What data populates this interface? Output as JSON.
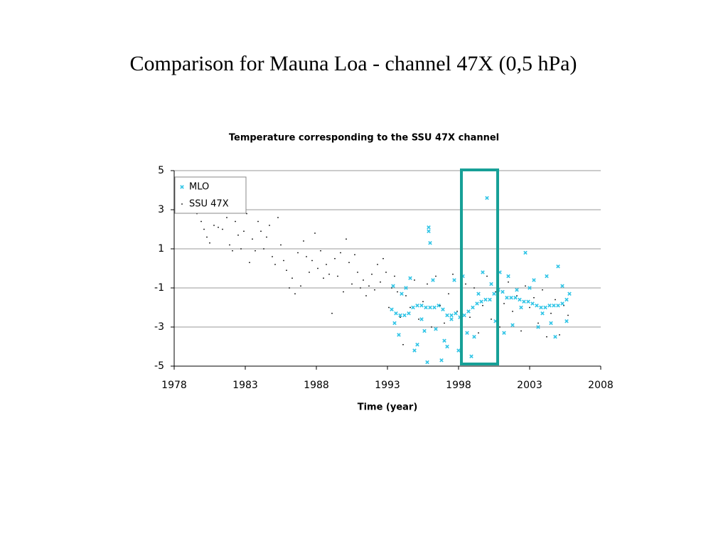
{
  "slide_title": "Comparison for Mauna Loa - channel 47X (0,5 hPa)",
  "chart_data": {
    "type": "scatter",
    "title": "Temperature corresponding to the SSU 47X channel",
    "x_label": "Time (year)",
    "xlim": [
      1978,
      2008
    ],
    "xticks": [
      1978,
      1983,
      1988,
      1993,
      1998,
      2003,
      2008
    ],
    "ylim": [
      -5,
      5
    ],
    "yticks": [
      -5,
      -3,
      -1,
      1,
      3,
      5
    ],
    "grid": true,
    "legend": "upper-left",
    "series": [
      {
        "name": "MLO",
        "color": "#2ec4e6",
        "marker": "x",
        "x": [
          1993.3,
          1993.6,
          1993.9,
          1994.2,
          1994.5,
          1994.8,
          1995.1,
          1995.4,
          1995.7,
          1996.0,
          1996.3,
          1996.6,
          1996.9,
          1997.2,
          1997.5,
          1997.8,
          1998.1,
          1998.4,
          1998.7,
          1999.0,
          1999.3,
          1999.6,
          1999.9,
          2000.2,
          2000.5,
          2000.8,
          2001.1,
          2001.4,
          2001.7,
          2002.0,
          2002.3,
          2002.6,
          2002.9,
          2003.2,
          2003.5,
          2003.8,
          2004.1,
          2004.4,
          2004.7,
          2005.0,
          2005.3,
          2005.6,
          1993.4,
          1993.5,
          1993.8,
          1994.0,
          1994.3,
          1994.6,
          1994.9,
          1995.1,
          1995.4,
          1995.6,
          1995.9,
          1995.9,
          1996.0,
          1996.2,
          1996.4,
          1996.8,
          1997.0,
          1997.2,
          1997.5,
          1997.7,
          1998.0,
          1998.3,
          1998.6,
          1998.9,
          1999.1,
          1999.4,
          1999.7,
          2000.0,
          2000.3,
          2000.6,
          2000.9,
          2001.2,
          2001.5,
          2001.8,
          2002.1,
          2002.4,
          2002.7,
          2003.0,
          2003.3,
          2003.6,
          2003.9,
          2004.2,
          2004.5,
          2004.8,
          2005.0,
          2005.3,
          2005.6,
          2005.8,
          1995.8
        ],
        "values": [
          -2.1,
          -2.3,
          -2.4,
          -2.4,
          -2.3,
          -2.0,
          -1.9,
          -1.9,
          -2.0,
          -2.0,
          -2.0,
          -1.9,
          -2.1,
          -2.4,
          -2.4,
          -2.3,
          -2.5,
          -2.4,
          -2.2,
          -2.0,
          -1.8,
          -1.7,
          -1.6,
          -1.6,
          -1.3,
          -1.1,
          -1.2,
          -1.5,
          -1.5,
          -1.5,
          -1.6,
          -1.7,
          -1.7,
          -1.8,
          -1.9,
          -2.0,
          -2.0,
          -1.9,
          -1.9,
          -1.9,
          -1.8,
          -1.6,
          -0.9,
          -2.8,
          -3.4,
          -1.3,
          -1.0,
          -0.5,
          -4.2,
          -3.9,
          -2.6,
          -3.2,
          2.1,
          1.9,
          1.3,
          -0.6,
          -3.1,
          -4.7,
          -3.7,
          -4.0,
          -2.6,
          -0.6,
          -4.2,
          -0.4,
          -3.3,
          -4.5,
          -3.5,
          -1.3,
          -0.2,
          3.6,
          -0.8,
          -2.7,
          -0.2,
          -3.3,
          -0.4,
          -2.9,
          -1.1,
          -2.0,
          0.8,
          -1.0,
          -0.6,
          -3.0,
          -2.3,
          -0.4,
          -2.8,
          -3.5,
          0.1,
          -0.9,
          -2.7,
          -1.3,
          -4.8
        ]
      },
      {
        "name": "SSU 47X",
        "color": "#000000",
        "marker": "dot",
        "x": [
          1979.6,
          1979.9,
          1980.1,
          1980.3,
          1980.5,
          1980.8,
          1981.1,
          1981.4,
          1981.7,
          1981.9,
          1982.1,
          1982.3,
          1982.5,
          1982.7,
          1982.9,
          1983.1,
          1983.3,
          1983.5,
          1983.7,
          1983.9,
          1984.1,
          1984.3,
          1984.5,
          1984.7,
          1984.9,
          1985.1,
          1985.3,
          1985.5,
          1985.7,
          1985.9,
          1986.1,
          1986.3,
          1986.5,
          1986.7,
          1986.9,
          1987.1,
          1987.3,
          1987.5,
          1987.7,
          1987.9,
          1988.1,
          1988.3,
          1988.5,
          1988.7,
          1988.9,
          1989.1,
          1989.3,
          1989.5,
          1989.7,
          1989.9,
          1990.1,
          1990.3,
          1990.5,
          1990.7,
          1990.9,
          1991.1,
          1991.3,
          1991.5,
          1991.7,
          1991.9,
          1992.1,
          1992.3,
          1992.5,
          1992.7,
          1992.9,
          1993.1,
          1993.3,
          1993.5,
          1993.7,
          1993.9,
          1994.1,
          1994.3,
          1994.6,
          1994.9,
          1995.2,
          1995.5,
          1995.8,
          1996.1,
          1996.4,
          1996.7,
          1997.0,
          1997.3,
          1997.6,
          1997.9,
          1998.2,
          1998.5,
          1998.8,
          1999.1,
          1999.4,
          1999.7,
          2000.0,
          2000.3,
          2000.6,
          2000.9,
          2001.2,
          2001.5,
          2001.8,
          2002.1,
          2002.4,
          2002.7,
          2003.0,
          2003.3,
          2003.6,
          2003.9,
          2004.2,
          2004.5,
          2004.8,
          2005.1,
          2005.4,
          2005.7
        ],
        "values": [
          2.8,
          2.4,
          2.0,
          1.6,
          1.3,
          2.2,
          2.1,
          2.0,
          2.6,
          1.2,
          0.9,
          2.4,
          1.7,
          1.0,
          1.9,
          2.8,
          0.3,
          1.5,
          0.9,
          2.4,
          1.9,
          1.0,
          1.6,
          2.2,
          0.6,
          0.2,
          2.6,
          1.2,
          0.4,
          -0.1,
          -1.0,
          -0.5,
          -1.3,
          0.8,
          -0.9,
          1.4,
          0.6,
          -0.2,
          0.4,
          1.8,
          0.0,
          0.9,
          -0.5,
          0.2,
          -0.3,
          -2.3,
          0.5,
          -0.4,
          0.8,
          -1.2,
          1.5,
          0.3,
          -0.8,
          0.7,
          -0.2,
          -1.0,
          -0.6,
          -1.4,
          -0.9,
          -0.3,
          -1.1,
          0.2,
          -0.7,
          0.5,
          -0.2,
          -2.0,
          -1.0,
          -0.4,
          -1.2,
          -2.5,
          -3.9,
          -1.4,
          -2.0,
          -0.6,
          -2.6,
          -1.7,
          -0.8,
          -3.0,
          -0.4,
          -1.9,
          -2.8,
          -1.3,
          -0.3,
          -2.2,
          -1.5,
          -0.8,
          -2.5,
          -1.0,
          -3.3,
          -1.9,
          -0.4,
          -2.6,
          -1.2,
          -3.0,
          -1.8,
          -0.7,
          -2.2,
          -1.4,
          -3.2,
          -0.9,
          -2.0,
          -1.5,
          -2.8,
          -1.1,
          -3.5,
          -2.3,
          -1.6,
          -3.4,
          -1.9,
          -2.4
        ]
      }
    ]
  }
}
